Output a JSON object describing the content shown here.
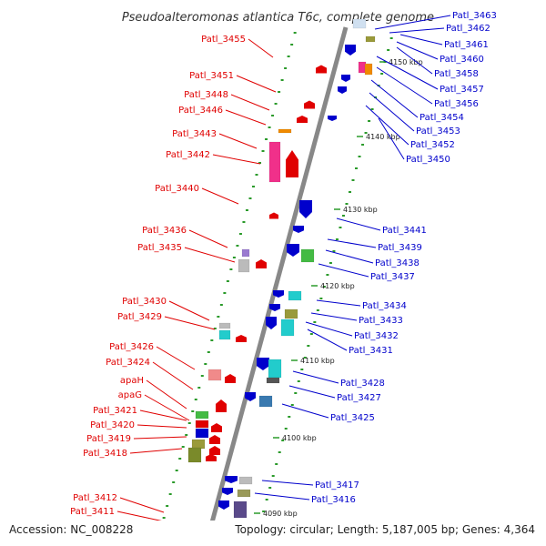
{
  "title": "Pseudoalteromonas atlantica T6c, complete genome",
  "footer": {
    "accession": "Accession: NC_008228",
    "topology": "Topology: circular; Length: 5,187,005 bp; Genes: 4,364"
  },
  "scale_ticks": [
    "4150 kbp",
    "4140 kbp",
    "4130 kbp",
    "4120 kbp",
    "4110 kbp",
    "4100 kbp",
    "4090 kbp"
  ],
  "left_labels": [
    "Patl_3455",
    "Patl_3451",
    "Patl_3448",
    "Patl_3446",
    "Patl_3443",
    "Patl_3442",
    "Patl_3440",
    "Patl_3436",
    "Patl_3435",
    "Patl_3430",
    "Patl_3429",
    "Patl_3426",
    "Patl_3424",
    "apaH",
    "apaG",
    "Patl_3421",
    "Patl_3420",
    "Patl_3419",
    "Patl_3418",
    "Patl_3412",
    "Patl_3411"
  ],
  "right_labels": [
    "Patl_3463",
    "Patl_3462",
    "Patl_3461",
    "Patl_3460",
    "Patl_3458",
    "Patl_3457",
    "Patl_3456",
    "Patl_3454",
    "Patl_3453",
    "Patl_3452",
    "Patl_3450",
    "Patl_3441",
    "Patl_3439",
    "Patl_3438",
    "Patl_3437",
    "Patl_3434",
    "Patl_3433",
    "Patl_3432",
    "Patl_3431",
    "Patl_3428",
    "Patl_3427",
    "Patl_3425",
    "Patl_3417",
    "Patl_3416"
  ],
  "colors": {
    "forward_strand": "#e00000",
    "reverse_strand": "#0000cc",
    "backbone": "#888888",
    "gc_dots": "#2a9a2a",
    "magenta": "#f0308a",
    "cyan": "#22cccc",
    "green": "#44bb44",
    "olive": "#9a9a3a",
    "orange": "#f08a00",
    "grey": "#bbbbbb"
  }
}
